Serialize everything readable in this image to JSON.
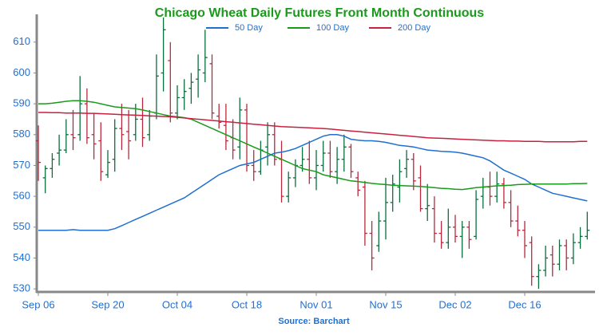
{
  "chart_data": {
    "type": "ohlc",
    "title": "Chicago Wheat Daily Futures Front Month Continuous",
    "source": "Source: Barchart",
    "categories": [
      "Sep 06",
      null,
      null,
      null,
      null,
      null,
      null,
      null,
      null,
      null,
      "Sep 20",
      null,
      null,
      null,
      null,
      null,
      null,
      null,
      null,
      null,
      "Oct 04",
      null,
      null,
      null,
      null,
      null,
      null,
      null,
      null,
      null,
      "Oct 18",
      null,
      null,
      null,
      null,
      null,
      null,
      null,
      null,
      null,
      "Nov 01",
      null,
      null,
      null,
      null,
      null,
      null,
      null,
      null,
      null,
      "Nov 15",
      null,
      null,
      null,
      null,
      null,
      null,
      null,
      null,
      null,
      "Dec 02",
      null,
      null,
      null,
      null,
      null,
      null,
      null,
      null,
      null,
      "Dec 16",
      null,
      null,
      null,
      null,
      null,
      null,
      null,
      null,
      null
    ],
    "open": [
      578,
      566,
      569,
      574,
      575,
      580,
      580,
      590,
      580,
      578,
      567,
      572,
      582,
      581,
      580,
      585,
      580,
      587,
      600,
      604,
      587,
      592,
      595,
      598,
      600,
      603,
      586,
      583,
      579,
      576,
      588,
      570,
      568,
      576,
      580,
      572,
      560,
      566,
      570,
      572,
      566,
      570,
      574,
      568,
      572,
      576,
      566,
      563,
      548,
      544,
      552,
      558,
      563,
      569,
      572,
      566,
      556,
      556,
      548,
      545,
      550,
      547,
      550,
      547,
      560,
      563,
      560,
      564,
      558,
      552,
      549,
      545,
      534,
      536,
      541,
      538,
      544,
      540,
      545,
      547
    ],
    "high": [
      583,
      570,
      574,
      580,
      585,
      588,
      599,
      595,
      587,
      584,
      575,
      585,
      590,
      588,
      590,
      592,
      588,
      606,
      618,
      610,
      596,
      598,
      600,
      606,
      614,
      606,
      590,
      590,
      585,
      592,
      590,
      575,
      578,
      584,
      584,
      578,
      568,
      572,
      576,
      578,
      575,
      578,
      578,
      576,
      580,
      577,
      568,
      565,
      552,
      555,
      566,
      567,
      572,
      575,
      574,
      570,
      564,
      560,
      552,
      556,
      554,
      552,
      552,
      562,
      566,
      568,
      568,
      566,
      562,
      557,
      552,
      547,
      538,
      544,
      544,
      546,
      546,
      548,
      550,
      555
    ],
    "low": [
      565,
      561,
      566,
      570,
      574,
      575,
      578,
      577,
      572,
      565,
      566,
      568,
      575,
      572,
      578,
      576,
      578,
      585,
      594,
      584,
      585,
      588,
      590,
      592,
      597,
      585,
      582,
      575,
      572,
      572,
      568,
      565,
      567,
      570,
      570,
      558,
      558,
      563,
      568,
      564,
      562,
      568,
      566,
      564,
      568,
      566,
      560,
      544,
      536,
      542,
      546,
      555,
      558,
      566,
      562,
      555,
      552,
      545,
      543,
      543,
      545,
      540,
      543,
      546,
      556,
      557,
      558,
      556,
      550,
      547,
      540,
      531,
      530,
      534,
      534,
      536,
      536,
      538,
      543,
      546
    ],
    "close": [
      571,
      569,
      572,
      575,
      580,
      579,
      590,
      579,
      577,
      568,
      571,
      582,
      580,
      578,
      585,
      579,
      586,
      599,
      614,
      587,
      592,
      594,
      597,
      601,
      605,
      587,
      584,
      578,
      575,
      588,
      570,
      568,
      575,
      580,
      572,
      560,
      566,
      570,
      572,
      566,
      570,
      574,
      568,
      572,
      576,
      568,
      562,
      548,
      540,
      552,
      558,
      564,
      568,
      572,
      565,
      556,
      557,
      548,
      545,
      550,
      547,
      550,
      546,
      559,
      563,
      560,
      564,
      558,
      552,
      549,
      544,
      534,
      536,
      540,
      538,
      544,
      540,
      545,
      547,
      549
    ],
    "up_color": "#0b6e3c",
    "down_color": "#b8283c",
    "series": [
      {
        "name": "50 Day",
        "color": "#1f6fd1",
        "values": [
          549,
          549,
          549,
          549,
          549,
          549.2,
          549,
          549,
          549,
          549,
          549,
          549.5,
          550.5,
          551.5,
          552.5,
          553.5,
          554.5,
          555.5,
          556.5,
          557.5,
          558.5,
          559.5,
          561,
          562.5,
          564,
          565.5,
          567,
          568,
          569,
          570,
          570.5,
          571,
          572,
          573,
          574,
          574.3,
          574.8,
          575.5,
          576.5,
          577.5,
          578.5,
          579.5,
          580,
          580,
          579.5,
          578.5,
          578.2,
          578,
          578,
          577.8,
          577.5,
          577,
          576.5,
          576.3,
          576,
          575.5,
          575,
          574.8,
          574.6,
          574.5,
          574.3,
          574,
          573.5,
          573,
          572.5,
          571.5,
          570,
          568.5,
          567.5,
          566.5,
          565.5,
          564,
          563,
          562,
          561,
          560.5,
          560,
          559.5,
          559,
          558.5
        ]
      },
      {
        "name": "100 Day",
        "color": "#1a9a1a",
        "values": [
          590,
          590,
          590.2,
          590.5,
          590.8,
          591,
          591,
          590.8,
          590.5,
          590,
          589.5,
          589,
          588.8,
          588.6,
          588.4,
          588,
          587.5,
          587,
          586.5,
          586,
          585.8,
          585.5,
          585,
          584,
          583,
          582,
          581,
          580,
          579,
          578,
          577,
          576,
          575,
          574,
          573,
          572,
          571,
          570,
          569,
          568.5,
          568,
          567,
          566.5,
          566,
          565.5,
          565,
          564.8,
          564.5,
          564.2,
          564,
          563.8,
          563.6,
          563.5,
          563.4,
          563.3,
          563.2,
          563,
          562.8,
          562.6,
          562.5,
          562.3,
          562.2,
          562.5,
          562.8,
          563,
          563.2,
          563.4,
          563.5,
          563.6,
          563.8,
          563.9,
          564,
          564,
          564,
          564,
          564,
          564,
          564.1,
          564.1,
          564.2
        ]
      },
      {
        "name": "200 Day",
        "color": "#c8203f",
        "values": [
          587.2,
          587.2,
          587.1,
          587.1,
          587,
          587,
          587,
          586.9,
          586.9,
          586.8,
          586.7,
          586.6,
          586.5,
          586.4,
          586.3,
          586.2,
          586.1,
          586,
          585.9,
          585.8,
          585.6,
          585.4,
          585.2,
          585,
          584.8,
          584.6,
          584.4,
          584.2,
          584,
          583.8,
          583.6,
          583.4,
          583.2,
          583,
          582.8,
          582.6,
          582.5,
          582.4,
          582.3,
          582.2,
          582.1,
          582,
          581.8,
          581.6,
          581.4,
          581.2,
          581,
          580.8,
          580.6,
          580.4,
          580.2,
          580,
          579.8,
          579.6,
          579.4,
          579.2,
          579,
          578.9,
          578.8,
          578.7,
          578.6,
          578.5,
          578.4,
          578.3,
          578.2,
          578.1,
          578,
          578,
          577.9,
          577.9,
          577.8,
          577.8,
          577.8,
          577.7,
          577.7,
          577.7,
          577.7,
          577.7,
          577.8,
          577.8
        ]
      }
    ],
    "ylim": [
      529,
      619
    ],
    "yticks": [
      530,
      540,
      550,
      560,
      570,
      580,
      590,
      600,
      610
    ]
  }
}
